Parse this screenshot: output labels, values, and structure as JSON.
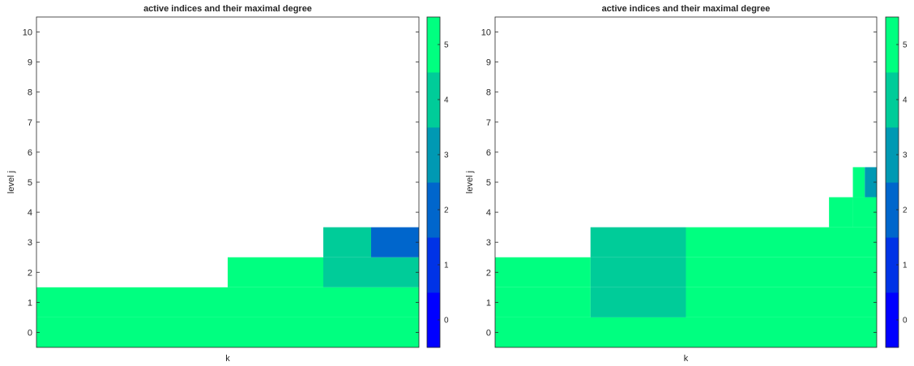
{
  "colorbar": {
    "ticks": [
      "0",
      "1",
      "2",
      "3",
      "4",
      "5"
    ],
    "colors": [
      "#0000ff",
      "#0033e6",
      "#0066cc",
      "#0099b3",
      "#00cc99",
      "#00ff80"
    ]
  },
  "chart_data": [
    {
      "type": "heatmap",
      "title": "active indices and their maximal degree",
      "xlabel": "k",
      "ylabel": "level j",
      "ylim": [
        -0.5,
        10.5
      ],
      "yticks": [
        "0",
        "1",
        "2",
        "3",
        "4",
        "5",
        "6",
        "7",
        "8",
        "9",
        "10"
      ],
      "xlim": [
        0,
        8
      ],
      "clim": [
        -0.5,
        5.5
      ],
      "cells": [
        {
          "k": [
            0,
            8
          ],
          "j": 0,
          "degree": 5
        },
        {
          "k": [
            0,
            4
          ],
          "j": 1,
          "degree": 5
        },
        {
          "k": [
            4,
            6
          ],
          "j": 1,
          "degree": 5
        },
        {
          "k": [
            6,
            8
          ],
          "j": 1,
          "degree": 5
        },
        {
          "k": [
            4,
            6
          ],
          "j": 2,
          "degree": 5
        },
        {
          "k": [
            6,
            8
          ],
          "j": 2,
          "degree": 4
        },
        {
          "k": [
            6,
            7
          ],
          "j": 3,
          "degree": 4
        },
        {
          "k": [
            7,
            8
          ],
          "j": 3,
          "degree": 2
        }
      ]
    },
    {
      "type": "heatmap",
      "title": "active indices and their maximal degree",
      "xlabel": "k",
      "ylabel": "level j",
      "ylim": [
        -0.5,
        10.5
      ],
      "yticks": [
        "0",
        "1",
        "2",
        "3",
        "4",
        "5",
        "6",
        "7",
        "8",
        "9",
        "10"
      ],
      "xlim": [
        0,
        8
      ],
      "clim": [
        -0.5,
        5.5
      ],
      "cells": [
        {
          "k": [
            0,
            8
          ],
          "j": 0,
          "degree": 5
        },
        {
          "k": [
            0,
            2
          ],
          "j": 1,
          "degree": 5
        },
        {
          "k": [
            2,
            4
          ],
          "j": 1,
          "degree": 4
        },
        {
          "k": [
            4,
            8
          ],
          "j": 1,
          "degree": 5
        },
        {
          "k": [
            0,
            2
          ],
          "j": 2,
          "degree": 5
        },
        {
          "k": [
            2,
            4
          ],
          "j": 2,
          "degree": 4
        },
        {
          "k": [
            4,
            8
          ],
          "j": 2,
          "degree": 5
        },
        {
          "k": [
            2,
            4
          ],
          "j": 3,
          "degree": 4
        },
        {
          "k": [
            4,
            8
          ],
          "j": 3,
          "degree": 5
        },
        {
          "k": [
            7,
            7.5
          ],
          "j": 4,
          "degree": 5
        },
        {
          "k": [
            7.5,
            8
          ],
          "j": 4,
          "degree": 5
        },
        {
          "k": [
            7.5,
            7.75
          ],
          "j": 5,
          "degree": 5
        },
        {
          "k": [
            7.75,
            8
          ],
          "j": 5,
          "degree": 3
        }
      ]
    }
  ]
}
